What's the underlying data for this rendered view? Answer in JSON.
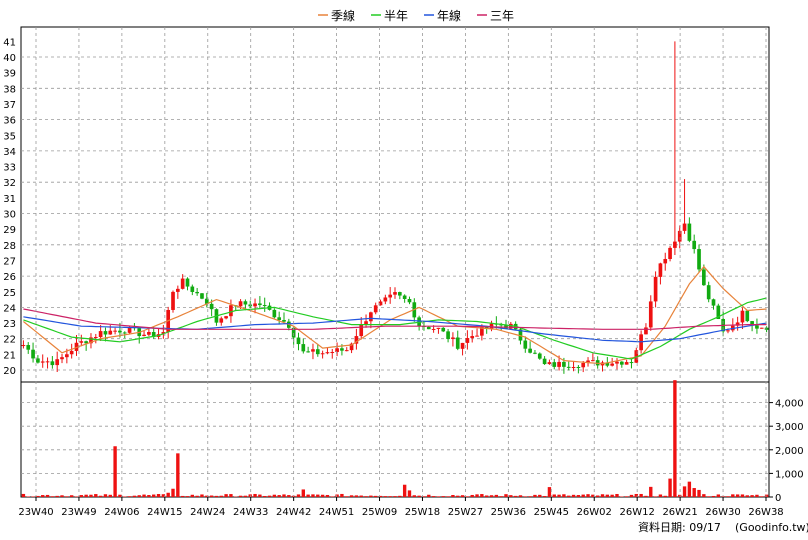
{
  "chart_data": [
    {
      "type": "candlestick",
      "title": "",
      "legend": {
        "placement": "top-center",
        "entries": [
          {
            "name": "季線",
            "color": "#e8833a"
          },
          {
            "name": "半年",
            "color": "#22cc22"
          },
          {
            "name": "年線",
            "color": "#2255dd"
          },
          {
            "name": "三年",
            "color": "#cc2266"
          }
        ]
      },
      "colors": {
        "up": "#ee1111",
        "down": "#11aa11"
      },
      "y_axis": {
        "position": "left",
        "ylim": [
          19,
          42
        ],
        "ticks": [
          20,
          21,
          22,
          23,
          24,
          25,
          26,
          27,
          28,
          29,
          30,
          31,
          32,
          33,
          34,
          35,
          36,
          37,
          38,
          39,
          40,
          41
        ]
      },
      "x_ticks": [
        "23W40",
        "23W49",
        "24W06",
        "24W15",
        "24W24",
        "24W33",
        "24W42",
        "24W51",
        "25W09",
        "25W18",
        "25W27",
        "25W36",
        "25W45",
        "26W02",
        "26W12",
        "26W21",
        "26W30",
        "26W38"
      ],
      "grid": true,
      "series": [
        {
          "name": "price",
          "anchors": [
            [
              0,
              21.6
            ],
            [
              3,
              20.6
            ],
            [
              7,
              20.5
            ],
            [
              11,
              21.6
            ],
            [
              16,
              22.4
            ],
            [
              21,
              22.6
            ],
            [
              26,
              22.2
            ],
            [
              29,
              22.4
            ],
            [
              31,
              25.1
            ],
            [
              33,
              25.6
            ],
            [
              38,
              24.4
            ],
            [
              40,
              23.1
            ],
            [
              44,
              24.2
            ],
            [
              49,
              24.2
            ],
            [
              55,
              22.9
            ],
            [
              58,
              21.1
            ],
            [
              62,
              21.1
            ],
            [
              67,
              21.3
            ],
            [
              72,
              23.8
            ],
            [
              77,
              24.8
            ],
            [
              80,
              24.3
            ],
            [
              82,
              22.9
            ],
            [
              86,
              22.6
            ],
            [
              90,
              21.6
            ],
            [
              94,
              22.4
            ],
            [
              98,
              22.9
            ],
            [
              101,
              22.8
            ],
            [
              104,
              21.6
            ],
            [
              108,
              20.3
            ],
            [
              114,
              20.4
            ],
            [
              121,
              20.5
            ],
            [
              126,
              20.6
            ],
            [
              129,
              22.9
            ],
            [
              131,
              26.2
            ],
            [
              133,
              27.3
            ],
            [
              135,
              28.4
            ],
            [
              137,
              29.4
            ],
            [
              139,
              27.6
            ],
            [
              141,
              25.3
            ],
            [
              143,
              23.9
            ],
            [
              145,
              22.4
            ],
            [
              147,
              22.9
            ],
            [
              149,
              23.6
            ],
            [
              152,
              22.8
            ],
            [
              154,
              22.8
            ]
          ]
        },
        {
          "name": "季線",
          "anchors": [
            [
              0,
              23.1
            ],
            [
              8,
              21.1
            ],
            [
              16,
              22.0
            ],
            [
              24,
              22.4
            ],
            [
              32,
              23.4
            ],
            [
              40,
              24.5
            ],
            [
              48,
              23.7
            ],
            [
              56,
              22.8
            ],
            [
              62,
              21.4
            ],
            [
              68,
              21.6
            ],
            [
              76,
              23.2
            ],
            [
              82,
              24.0
            ],
            [
              90,
              22.8
            ],
            [
              98,
              22.6
            ],
            [
              104,
              22.1
            ],
            [
              112,
              20.6
            ],
            [
              120,
              20.4
            ],
            [
              128,
              20.9
            ],
            [
              133,
              22.8
            ],
            [
              138,
              25.5
            ],
            [
              141,
              26.6
            ],
            [
              145,
              25.2
            ],
            [
              150,
              23.8
            ],
            [
              154,
              23.9
            ]
          ]
        },
        {
          "name": "半年",
          "anchors": [
            [
              0,
              23.2
            ],
            [
              10,
              22.1
            ],
            [
              20,
              21.8
            ],
            [
              28,
              22.2
            ],
            [
              36,
              23.1
            ],
            [
              44,
              23.8
            ],
            [
              52,
              24.0
            ],
            [
              60,
              23.4
            ],
            [
              68,
              22.9
            ],
            [
              78,
              22.9
            ],
            [
              86,
              23.2
            ],
            [
              94,
              23.1
            ],
            [
              102,
              22.8
            ],
            [
              110,
              21.9
            ],
            [
              118,
              21.1
            ],
            [
              126,
              20.7
            ],
            [
              132,
              21.5
            ],
            [
              138,
              22.6
            ],
            [
              144,
              23.4
            ],
            [
              150,
              24.3
            ],
            [
              154,
              24.6
            ]
          ]
        },
        {
          "name": "年線",
          "anchors": [
            [
              0,
              23.4
            ],
            [
              12,
              22.8
            ],
            [
              24,
              22.7
            ],
            [
              36,
              22.6
            ],
            [
              48,
              22.9
            ],
            [
              60,
              23.0
            ],
            [
              72,
              23.3
            ],
            [
              84,
              23.1
            ],
            [
              96,
              22.8
            ],
            [
              108,
              22.3
            ],
            [
              120,
              21.9
            ],
            [
              128,
              21.8
            ],
            [
              136,
              22.0
            ],
            [
              146,
              22.6
            ],
            [
              154,
              23.0
            ]
          ]
        },
        {
          "name": "三年",
          "anchors": [
            [
              0,
              23.9
            ],
            [
              15,
              23.0
            ],
            [
              30,
              22.6
            ],
            [
              45,
              22.6
            ],
            [
              60,
              22.6
            ],
            [
              75,
              22.8
            ],
            [
              90,
              22.8
            ],
            [
              105,
              22.7
            ],
            [
              120,
              22.6
            ],
            [
              130,
              22.6
            ],
            [
              140,
              22.8
            ],
            [
              150,
              22.9
            ],
            [
              154,
              22.9
            ]
          ]
        }
      ]
    },
    {
      "type": "bar",
      "y_axis": {
        "position": "right",
        "ylim": [
          0,
          5000
        ],
        "ticks": [
          0,
          1000,
          2000,
          3000,
          4000
        ],
        "tick_labels": [
          "0",
          "1,000",
          "2,000",
          "3,000",
          "4,000"
        ]
      },
      "bar_color": "#ee1111",
      "volume_spikes": [
        [
          19,
          2150
        ],
        [
          32,
          1850
        ],
        [
          31,
          350
        ],
        [
          30,
          180
        ],
        [
          58,
          320
        ],
        [
          79,
          520
        ],
        [
          80,
          280
        ],
        [
          109,
          420
        ],
        [
          134,
          780
        ],
        [
          135,
          4950
        ],
        [
          137,
          580
        ],
        [
          138,
          650
        ],
        [
          139,
          380
        ],
        [
          140,
          300
        ],
        [
          130,
          430
        ],
        [
          137,
          450
        ]
      ]
    }
  ],
  "footer": {
    "date_label": "資料日期: 09/17",
    "source": "(Goodinfo.tw)"
  }
}
